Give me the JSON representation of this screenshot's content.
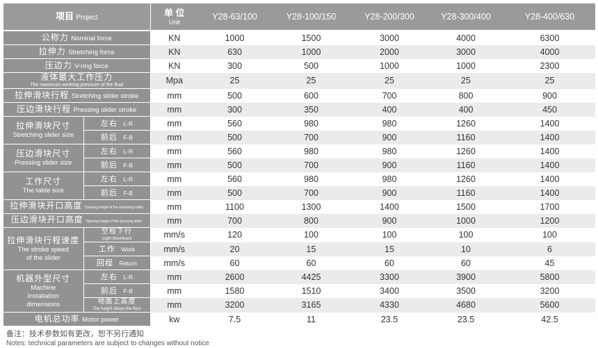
{
  "header": {
    "project_cn": "项目",
    "project_en": "Project",
    "unit_cn": "单 位",
    "unit_en": "Unit",
    "models": [
      "Y28-63/100",
      "Y28-100/150",
      "Y28-200/300",
      "Y28-300/400",
      "Y28-400/630"
    ]
  },
  "rows": [
    {
      "cn": "公称力",
      "en": "Nominal force",
      "unit": "KN",
      "values": [
        "1000",
        "1500",
        "3000",
        "4000",
        "6300"
      ]
    },
    {
      "cn": "拉伸力",
      "en": "Stretching force",
      "unit": "KN",
      "values": [
        "630",
        "1000",
        "2000",
        "3000",
        "4000"
      ]
    },
    {
      "cn": "压边力",
      "en": "V-ring force",
      "unit": "KN",
      "values": [
        "300",
        "500",
        "1000",
        "1000",
        "2300"
      ]
    },
    {
      "cn": "液体最大工作压力",
      "en": "The maximum working pressure of the fluid",
      "unit": "Mpa",
      "values": [
        "25",
        "25",
        "25",
        "25",
        "25"
      ]
    },
    {
      "cn": "拉伸滑块行程",
      "en": "Stretching slider stroke",
      "unit": "mm",
      "values": [
        "500",
        "600",
        "700",
        "800",
        "900"
      ]
    },
    {
      "cn": "压边滑块行程",
      "en": "Pressing slider stroke",
      "unit": "mm",
      "values": [
        "300",
        "350",
        "400",
        "400",
        "450"
      ]
    },
    {
      "cn": "拉伸滑块尺寸",
      "en": "Stretching slider size",
      "subs": [
        {
          "cn": "左右",
          "en": "L-R",
          "unit": "mm",
          "values": [
            "560",
            "980",
            "980",
            "1260",
            "1400"
          ]
        },
        {
          "cn": "前后",
          "en": "F-B",
          "unit": "mm",
          "values": [
            "500",
            "700",
            "900",
            "1160",
            "1400"
          ]
        }
      ]
    },
    {
      "cn": "压边滑块尺寸",
      "en": "Pressing slider size",
      "subs": [
        {
          "cn": "左右",
          "en": "L-R",
          "unit": "mm",
          "values": [
            "560",
            "980",
            "980",
            "1260",
            "1400"
          ]
        },
        {
          "cn": "前后",
          "en": "F-B",
          "unit": "mm",
          "values": [
            "500",
            "700",
            "900",
            "1160",
            "1400"
          ]
        }
      ]
    },
    {
      "cn": "工作尺寸",
      "en": "The table size",
      "subs": [
        {
          "cn": "左右",
          "en": "L-R",
          "unit": "mm",
          "values": [
            "560",
            "980",
            "980",
            "1260",
            "1400"
          ]
        },
        {
          "cn": "前后",
          "en": "F-B",
          "unit": "mm",
          "values": [
            "500",
            "700",
            "900",
            "1160",
            "1400"
          ]
        }
      ]
    },
    {
      "cn": "拉伸滑块开口高度",
      "en": "Opening height of the stretching slider",
      "unit": "mm",
      "values": [
        "1100",
        "1300",
        "1400",
        "1500",
        "1700"
      ]
    },
    {
      "cn": "压边滑块开口高度",
      "en": "Opening height of the pressing slider",
      "unit": "mm",
      "values": [
        "700",
        "800",
        "900",
        "1000",
        "1200"
      ]
    },
    {
      "cn": "拉伸滑块行程速度",
      "en": "The stroke speed of the slider",
      "subs": [
        {
          "cn": "空程下行",
          "en": "Light downward",
          "unit": "mm/s",
          "values": [
            "120",
            "100",
            "100",
            "100",
            "100"
          ]
        },
        {
          "cn": "工作",
          "en": "Work",
          "unit": "mm/s",
          "values": [
            "20",
            "15",
            "15",
            "10",
            "6"
          ]
        },
        {
          "cn": "回程",
          "en": "Return",
          "unit": "mm/s",
          "values": [
            "60",
            "60",
            "60",
            "60",
            "45"
          ]
        }
      ]
    },
    {
      "cn": "机器外型尺寸",
      "en": "Machine installation dimensions",
      "subs": [
        {
          "cn": "左右",
          "en": "L-R",
          "unit": "mm",
          "values": [
            "2600",
            "4425",
            "3300",
            "3900",
            "5800"
          ]
        },
        {
          "cn": "前后",
          "en": "F-B",
          "unit": "mm",
          "values": [
            "1580",
            "1510",
            "3400",
            "3500",
            "3200"
          ]
        },
        {
          "cn": "地面上高度",
          "en": "The height above the floor",
          "unit": "mm",
          "values": [
            "3200",
            "3165",
            "4330",
            "4680",
            "5600"
          ]
        }
      ]
    },
    {
      "cn": "电机总功率",
      "en": "Motor power",
      "unit": "kw",
      "values": [
        "7.5",
        "11",
        "23.5",
        "23.5",
        "42.5"
      ]
    }
  ],
  "notes": {
    "cn": "备注：技术参数如有更改，恕不另行通知",
    "en": "Notes: technical parameters are subject to changes without notice"
  }
}
